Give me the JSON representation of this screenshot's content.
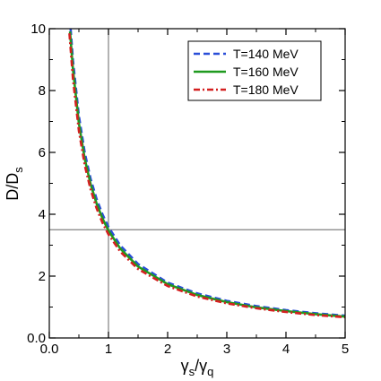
{
  "chart_data": {
    "type": "line",
    "x_axis": {
      "label_main": "γ",
      "label_sub1": "s",
      "label_slash": "/γ",
      "label_sub2": "q",
      "xlim": [
        0,
        5
      ],
      "ticks": [
        0,
        1,
        2,
        3,
        4,
        5
      ],
      "tick_labels": [
        "0.0",
        "1",
        "2",
        "3",
        "4",
        "5"
      ]
    },
    "y_axis": {
      "label_main": "D/D",
      "label_sub": "s",
      "ylim": [
        0,
        10
      ],
      "ticks": [
        0,
        2,
        4,
        6,
        8,
        10
      ],
      "tick_labels": [
        "0.0",
        "2",
        "4",
        "6",
        "8",
        "10"
      ]
    },
    "reference_lines": {
      "vertical_x": 1.0,
      "horizontal_y": 3.5,
      "color": "#808080"
    },
    "grid": false,
    "legend_position": "top-right",
    "series": [
      {
        "name": "T=140 MeV",
        "color": "#2a4ed8",
        "dash": "dashed",
        "x": [
          0.36,
          0.4,
          0.5,
          0.6,
          0.7,
          0.8,
          0.9,
          1.0,
          1.2,
          1.5,
          2.0,
          2.5,
          3.0,
          3.5,
          4.0,
          4.5,
          5.0
        ],
        "y": [
          10.0,
          8.97,
          7.18,
          5.98,
          5.13,
          4.49,
          3.99,
          3.59,
          2.99,
          2.39,
          1.79,
          1.44,
          1.2,
          1.03,
          0.9,
          0.8,
          0.72
        ]
      },
      {
        "name": "T=160 MeV",
        "color": "#1f9a1f",
        "dash": "solid",
        "x": [
          0.35,
          0.4,
          0.5,
          0.6,
          0.7,
          0.8,
          0.9,
          1.0,
          1.2,
          1.5,
          2.0,
          2.5,
          3.0,
          3.5,
          4.0,
          4.5,
          5.0
        ],
        "y": [
          9.91,
          8.68,
          6.94,
          5.78,
          4.96,
          4.34,
          3.86,
          3.47,
          2.89,
          2.31,
          1.74,
          1.39,
          1.16,
          0.99,
          0.87,
          0.77,
          0.69
        ]
      },
      {
        "name": "T=180 MeV",
        "color": "#d42020",
        "dash": "dashdot",
        "x": [
          0.34,
          0.4,
          0.5,
          0.6,
          0.7,
          0.8,
          0.9,
          1.0,
          1.2,
          1.5,
          2.0,
          2.5,
          3.0,
          3.5,
          4.0,
          4.5,
          5.0
        ],
        "y": [
          9.85,
          8.38,
          6.7,
          5.58,
          4.79,
          4.19,
          3.72,
          3.35,
          2.79,
          2.23,
          1.68,
          1.34,
          1.12,
          0.96,
          0.84,
          0.74,
          0.67
        ]
      }
    ]
  }
}
